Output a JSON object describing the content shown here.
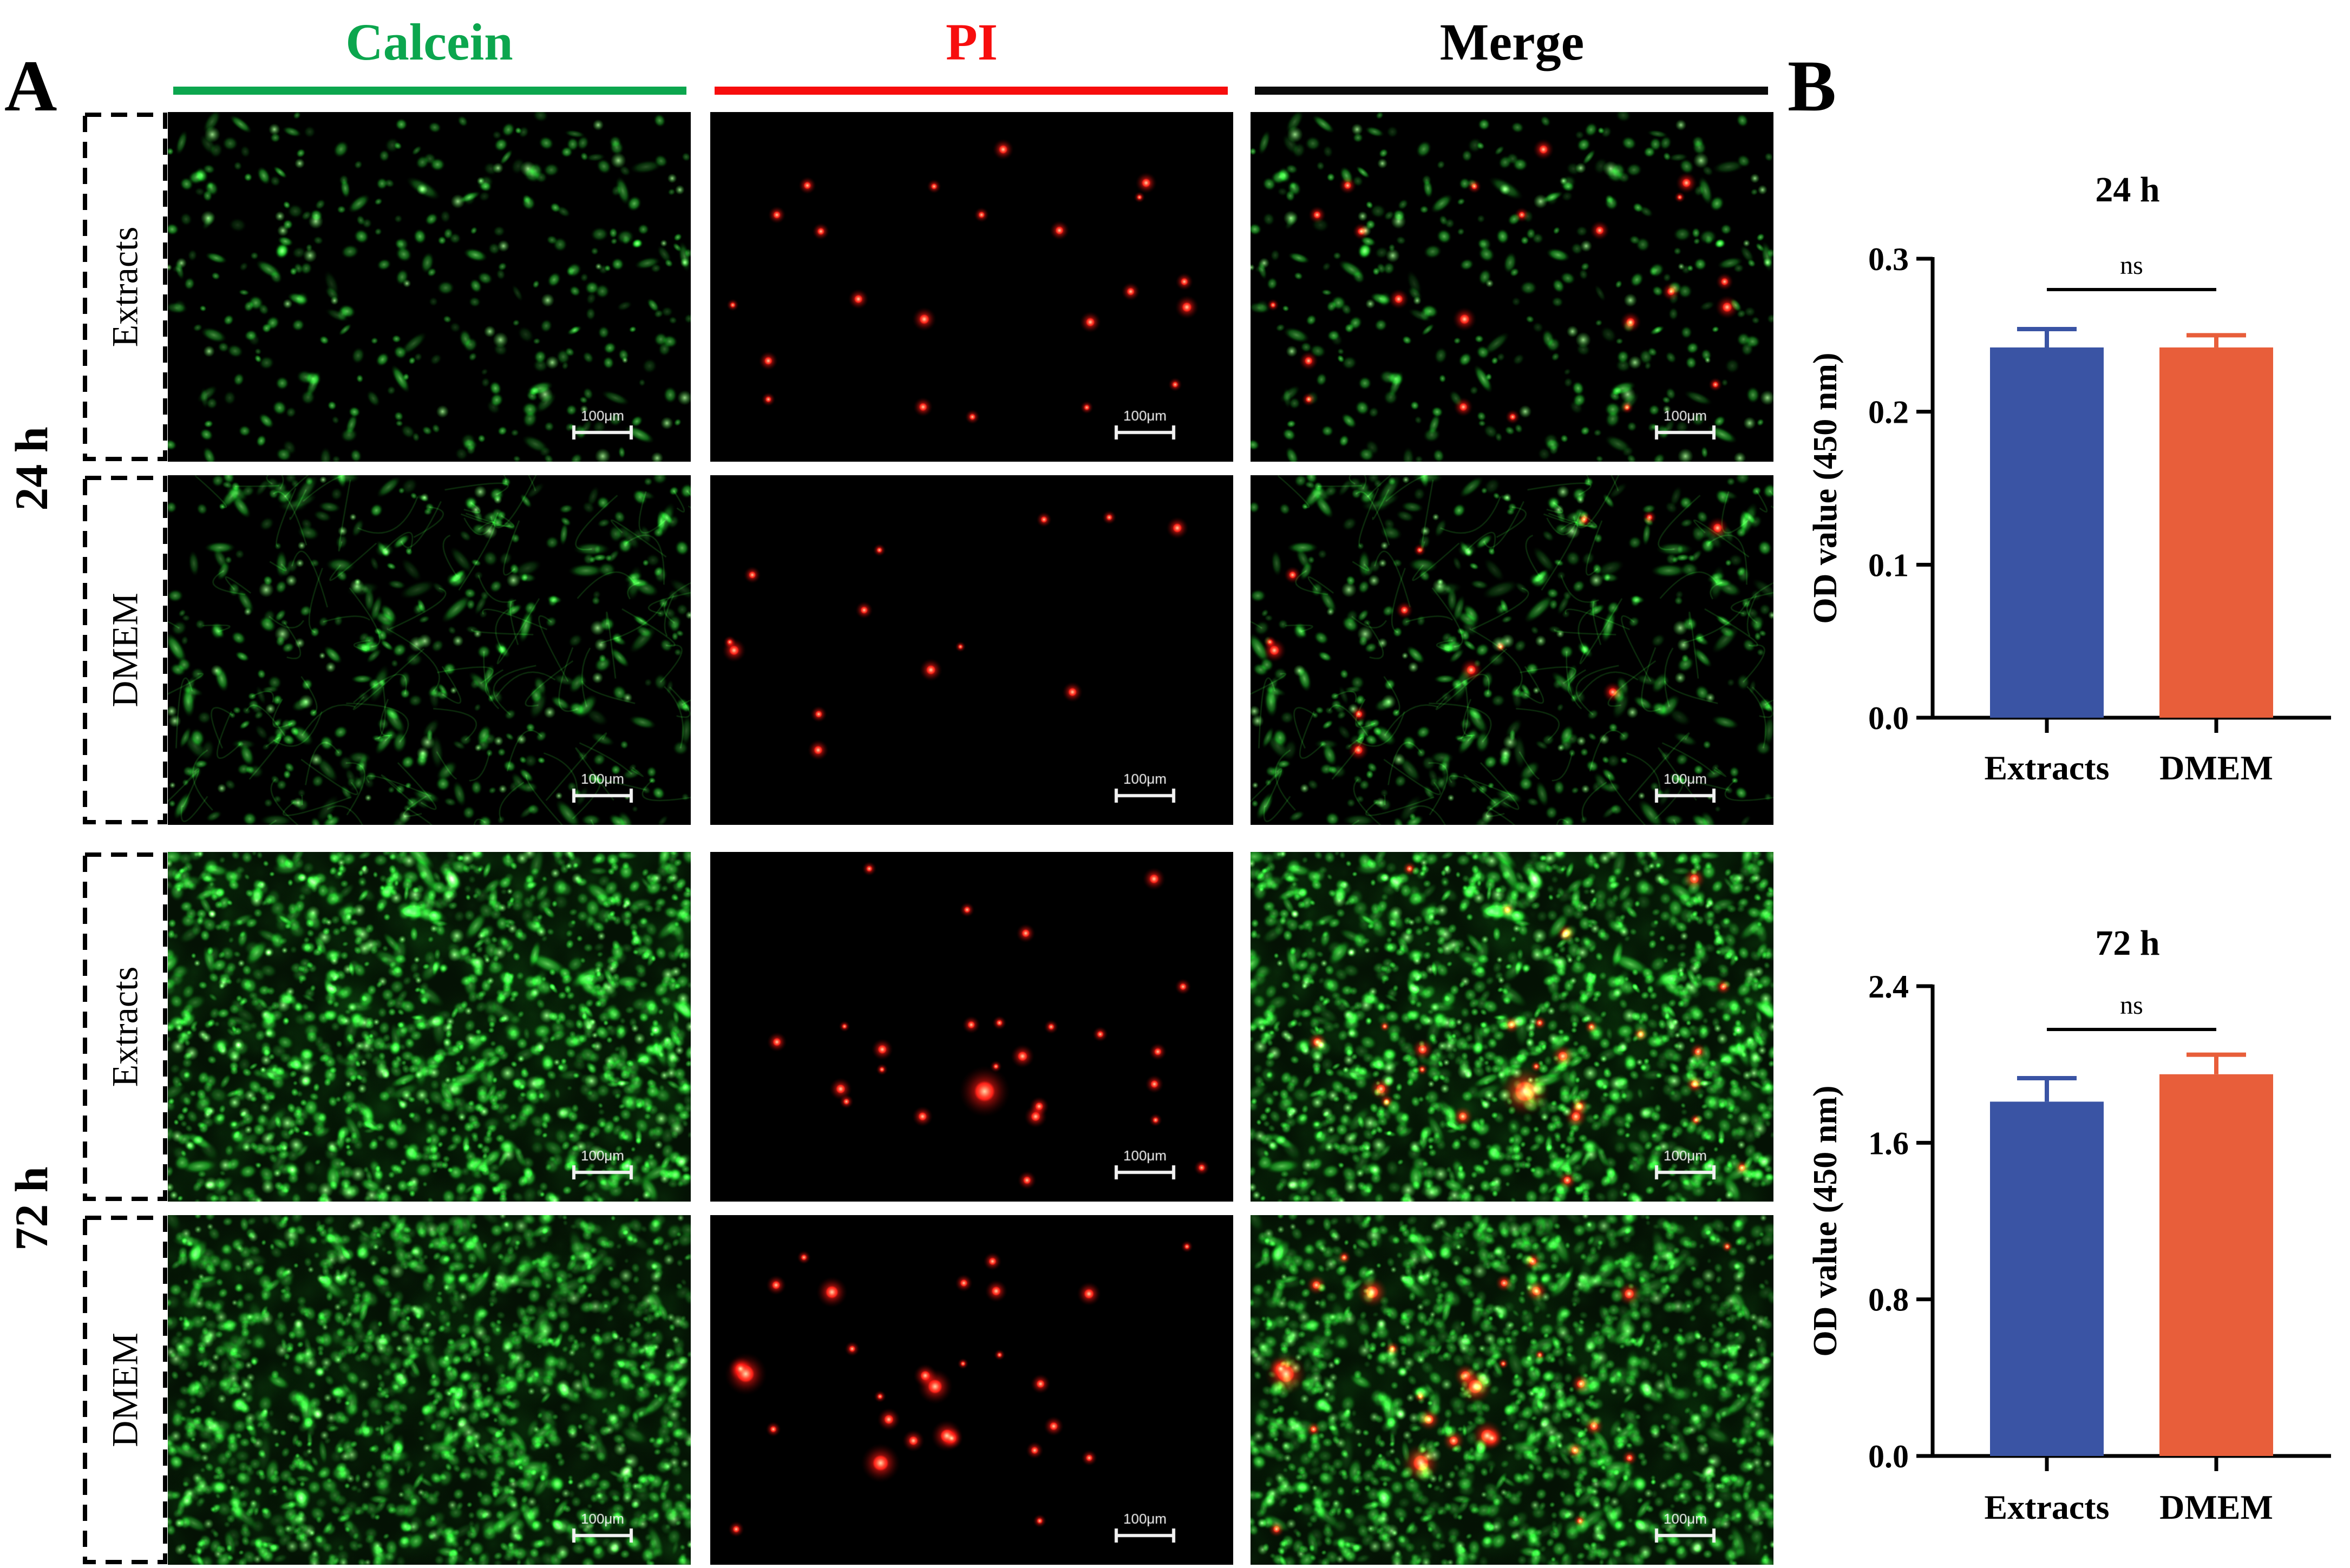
{
  "panel_a": {
    "label": "A"
  },
  "panel_b": {
    "label": "B"
  },
  "columns": [
    {
      "label": "Calcein",
      "text_color": "#0CA64E",
      "bar_color": "#0CA64E"
    },
    {
      "label": "PI",
      "text_color": "#F70D0D",
      "bar_color": "#F70D0D"
    },
    {
      "label": "Merge",
      "text_color": "#000000",
      "bar_color": "#0A0A0A"
    }
  ],
  "groups": [
    {
      "label": "24 h",
      "rows": [
        {
          "label": "Extracts",
          "micrograph": {
            "green_cells": 330,
            "red_cells": 22,
            "large_red": 0,
            "confluent": false,
            "elongated": 0.18,
            "brightness": 1.0
          }
        },
        {
          "label": "DMEM",
          "micrograph": {
            "green_cells": 430,
            "red_cells": 13,
            "large_red": 0,
            "confluent": false,
            "elongated": 0.4,
            "brightness": 1.0
          }
        }
      ]
    },
    {
      "label": "72 h",
      "rows": [
        {
          "label": "Extracts",
          "micrograph": {
            "green_cells": 1500,
            "red_cells": 26,
            "large_red": 1,
            "confluent": true,
            "elongated": 0.12,
            "brightness": 1.0
          }
        },
        {
          "label": "DMEM",
          "micrograph": {
            "green_cells": 1600,
            "red_cells": 28,
            "large_red": 5,
            "confluent": true,
            "elongated": 0.12,
            "brightness": 0.82
          }
        }
      ]
    }
  ],
  "scale_bar": {
    "label": "100μm"
  },
  "chart_data": [
    {
      "type": "bar",
      "title": "24 h",
      "ylabel": "OD value (450 nm)",
      "categories": [
        "Extracts",
        "DMEM"
      ],
      "values": [
        0.242,
        0.242
      ],
      "errors_up": [
        0.012,
        0.008
      ],
      "ylim": [
        0,
        0.3
      ],
      "yticks": [
        0.0,
        0.1,
        0.2,
        0.3
      ],
      "ytick_labels": [
        "0.0",
        "0.1",
        "0.2",
        "0.3"
      ],
      "significance": "ns",
      "bar_colors": [
        "#3A54A4",
        "#E85E3A"
      ],
      "legend": "none",
      "grid": false
    },
    {
      "type": "bar",
      "title": "72 h",
      "ylabel": "OD value (450 nm)",
      "categories": [
        "Extracts",
        "DMEM"
      ],
      "values": [
        1.81,
        1.95
      ],
      "errors_up": [
        0.12,
        0.1
      ],
      "ylim": [
        0,
        2.4
      ],
      "yticks": [
        0.0,
        0.8,
        1.6,
        2.4
      ],
      "ytick_labels": [
        "0.0",
        "0.8",
        "1.6",
        "2.4"
      ],
      "significance": "ns",
      "bar_colors": [
        "#3A54A4",
        "#E85E3A"
      ],
      "legend": "none",
      "grid": false
    }
  ]
}
